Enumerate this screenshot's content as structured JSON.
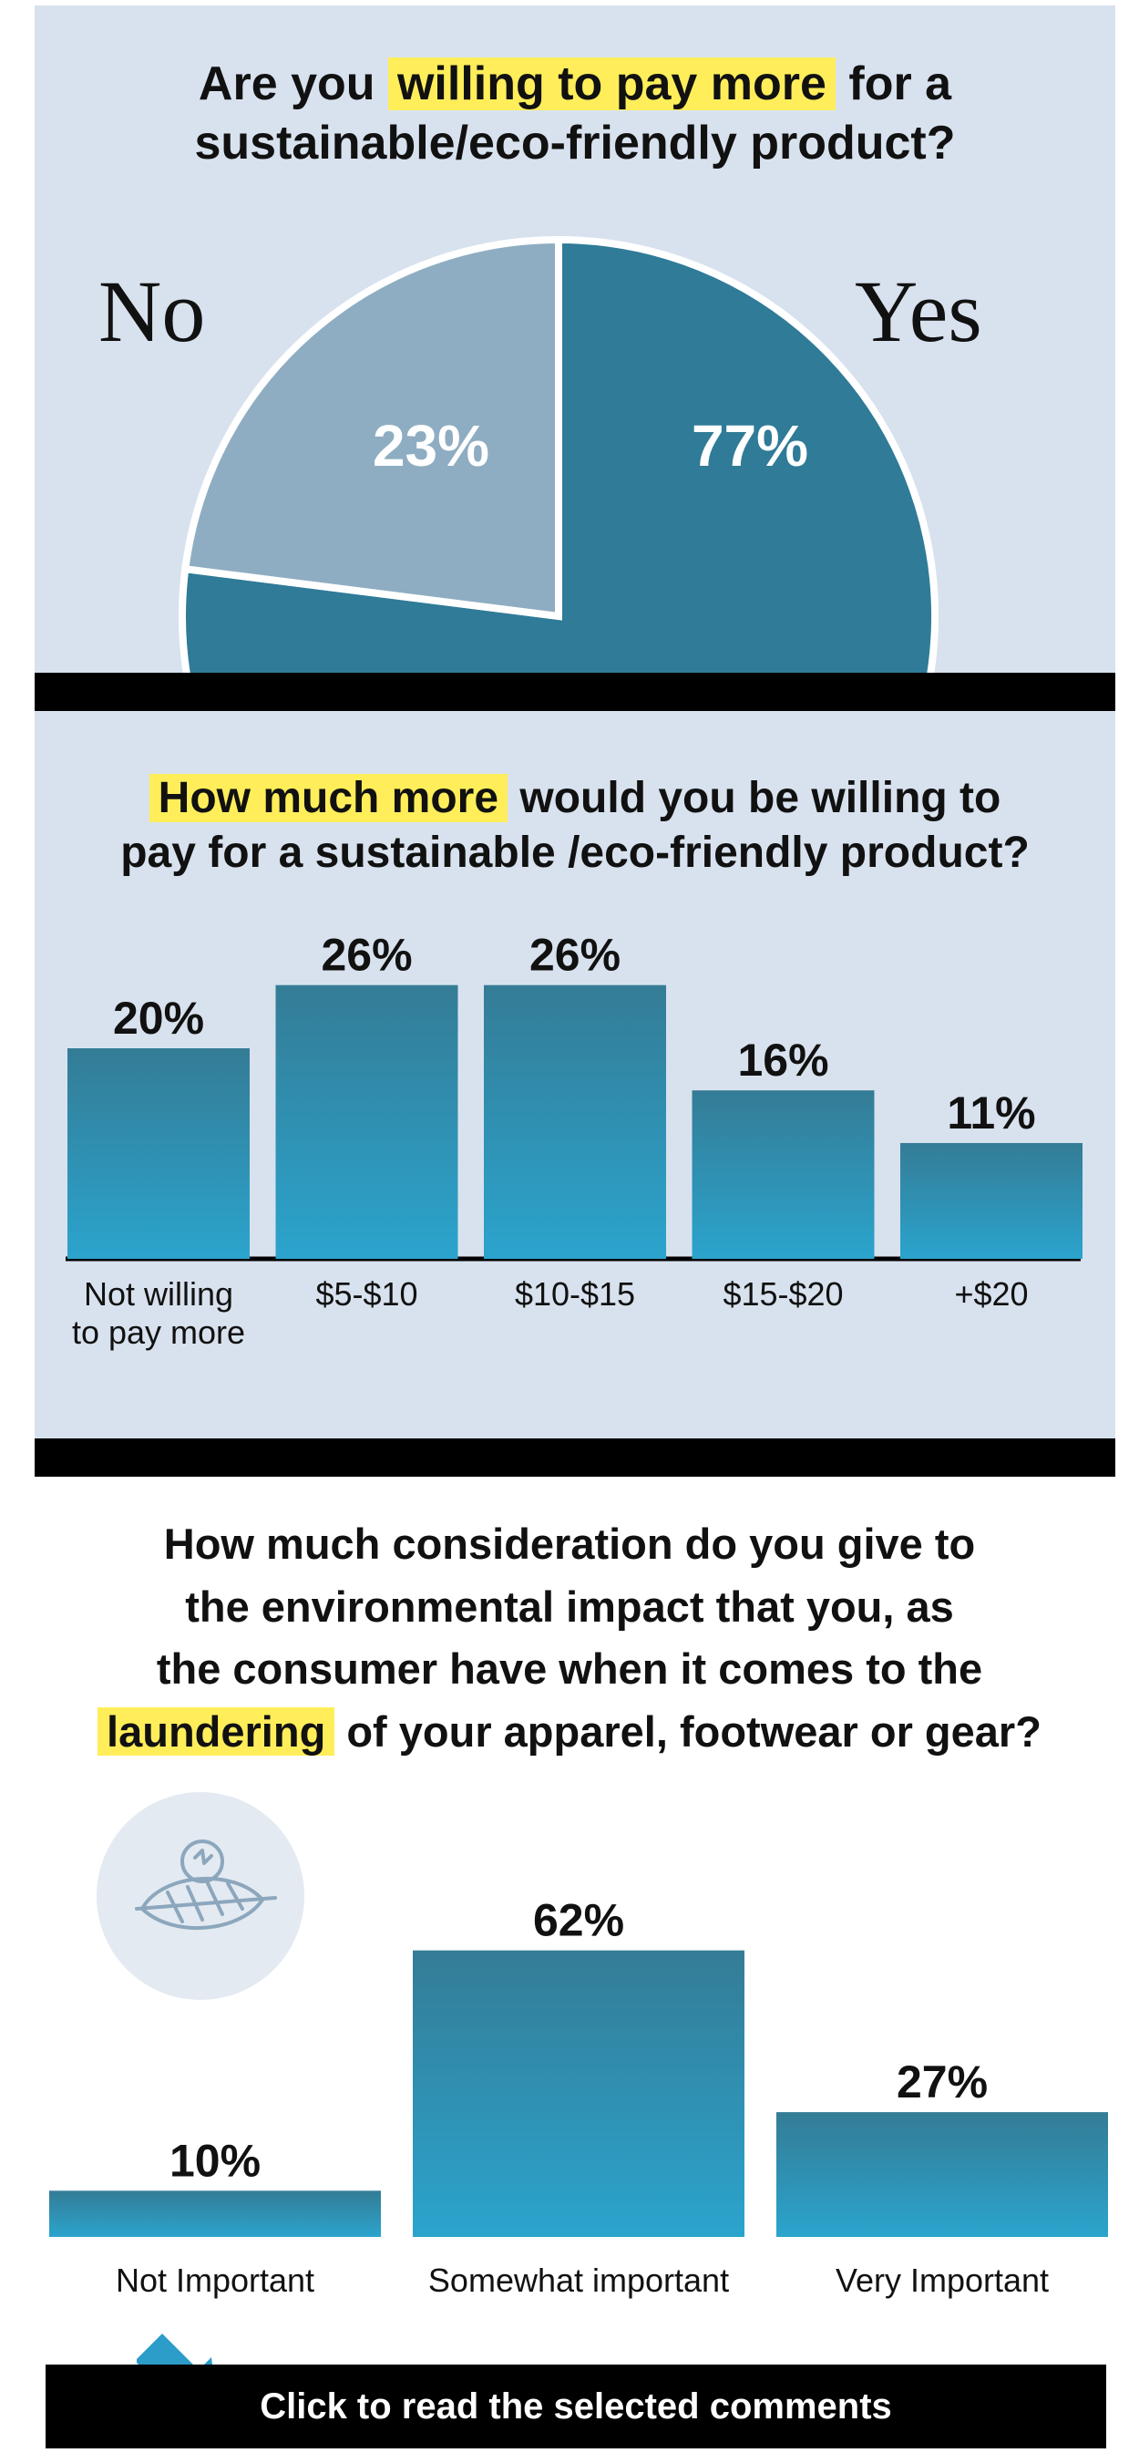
{
  "section1": {
    "question_pre": "Are you",
    "question_highlight": "willing to pay more",
    "question_post": "for a",
    "question_line2": "sustainable/eco-friendly product?",
    "label_no": "No",
    "label_yes": "Yes"
  },
  "section2": {
    "question_highlight": "How much more",
    "question_post": "would you be willing to",
    "question_line2": "pay for a sustainable /eco-friendly product?"
  },
  "section3": {
    "question_line1": "How much consideration do you give to",
    "question_line2": "the environmental impact that you, as",
    "question_line3": "the consumer have when it comes to the",
    "question_highlight": "laundering",
    "question_line4_post": "of your apparel, footwear or gear?",
    "icon": "leaf-icon"
  },
  "cta": {
    "label": "Click to read the selected comments",
    "icon": "arrow-icon"
  },
  "colors": {
    "panel": "#d8e2ee",
    "pie_yes": "#2f7b98",
    "pie_no": "#8eadc2",
    "bar_top": "#347c96",
    "bar_bottom": "#2ba4cd",
    "highlight": "#ffee5a",
    "arrow": "#2c9cc8"
  },
  "chart_data": [
    {
      "type": "pie",
      "categories": [
        "Yes",
        "No"
      ],
      "values": [
        77,
        23
      ],
      "labels": [
        "77%",
        "23%"
      ]
    },
    {
      "type": "bar",
      "categories": [
        "Not willing|to pay more",
        "$5-$10",
        "$10-$15",
        "$15-$20",
        "+$20"
      ],
      "values": [
        20,
        26,
        26,
        16,
        11
      ],
      "labels": [
        "20%",
        "26%",
        "26%",
        "16%",
        "11%"
      ]
    },
    {
      "type": "bar",
      "categories": [
        "Not Important",
        "Somewhat important",
        "Very Important"
      ],
      "values": [
        10,
        62,
        27
      ],
      "labels": [
        "10%",
        "62%",
        "27%"
      ]
    }
  ]
}
